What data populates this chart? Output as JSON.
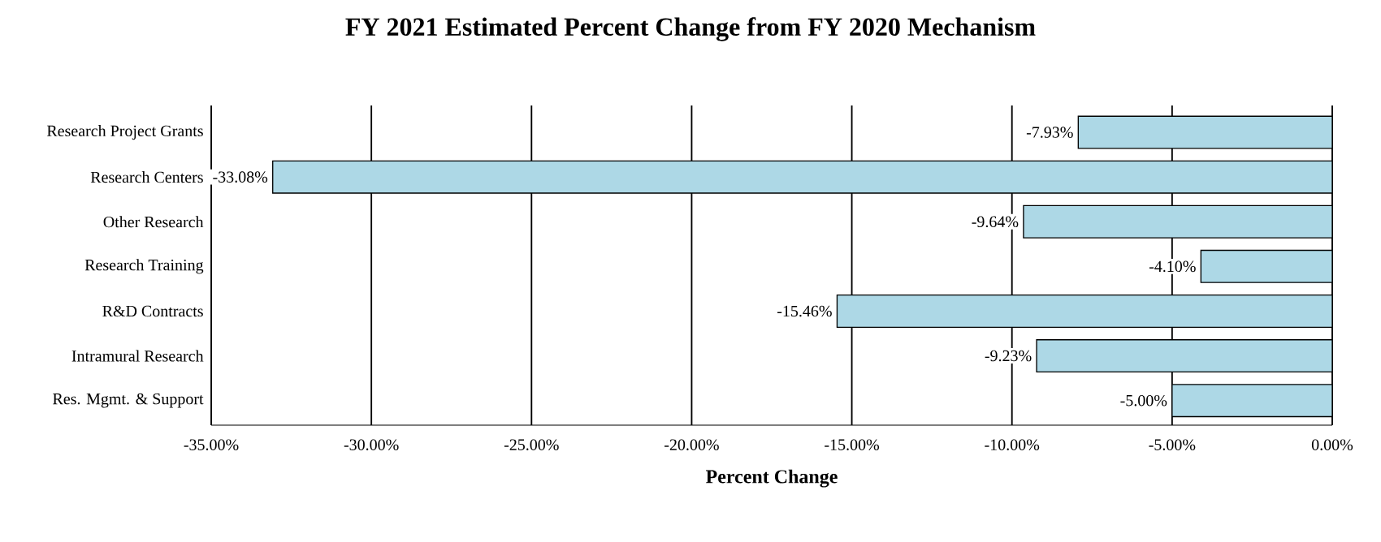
{
  "chart_data": {
    "type": "bar",
    "orientation": "horizontal",
    "title": "FY 2021 Estimated Percent Change from FY 2020 Mechanism",
    "xlabel": "Percent Change",
    "categories": [
      "Research Project Grants",
      "Research Centers",
      "Other Research",
      "Research Training",
      "R&D Contracts",
      "Intramural Research",
      "Res. Mgmt. & Support"
    ],
    "values": [
      -7.93,
      -33.08,
      -9.64,
      -4.1,
      -15.46,
      -9.23,
      -5.0
    ],
    "value_labels": [
      "-7.93%",
      "-33.08%",
      "-9.64%",
      "-4.10%",
      "-15.46%",
      "-9.23%",
      "-5.00%"
    ],
    "color": "#add8e6",
    "xlim": [
      -35,
      0
    ],
    "xticks": [
      {
        "value": -35,
        "label": "-35.00%"
      },
      {
        "value": -30,
        "label": "-30.00%"
      },
      {
        "value": -25,
        "label": "-25.00%"
      },
      {
        "value": -20,
        "label": "-20.00%"
      },
      {
        "value": -15,
        "label": "-15.00%"
      },
      {
        "value": -10,
        "label": "-10.00%"
      },
      {
        "value": -5,
        "label": "-5.00%"
      },
      {
        "value": 0,
        "label": "0.00%"
      }
    ],
    "grid": "x"
  }
}
